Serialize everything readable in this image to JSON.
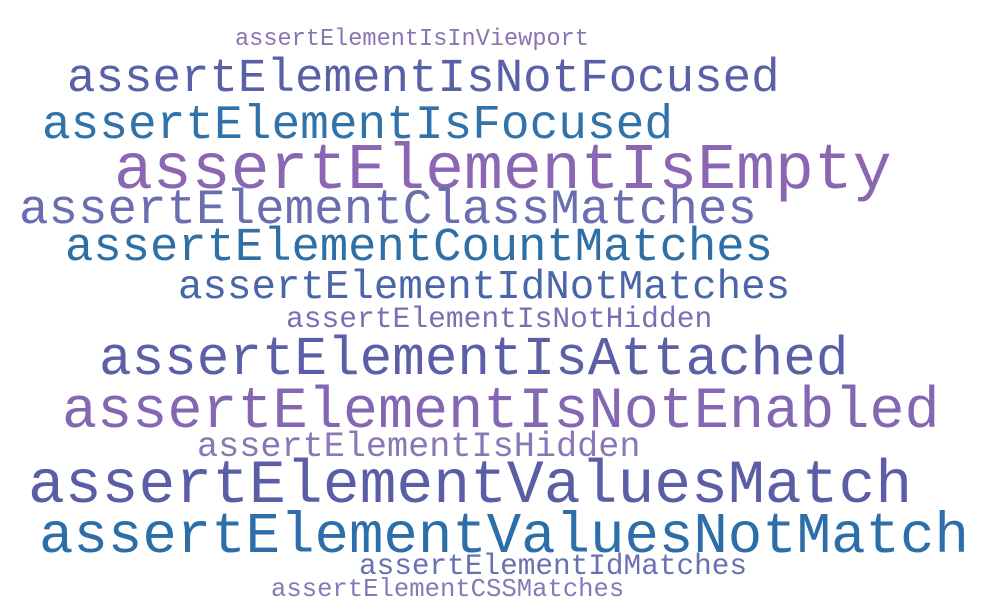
{
  "words": [
    {
      "text": "assertElementIsInViewport",
      "color": "#8a75b3"
    },
    {
      "text": "assertElementIsNotFocused",
      "color": "#5860a8"
    },
    {
      "text": "assertElementIsFocused",
      "color": "#2f73aa"
    },
    {
      "text": "assertElementIsEmpty",
      "color": "#8a66b3"
    },
    {
      "text": "assertElementClassMatches",
      "color": "#6a6db0"
    },
    {
      "text": "assertElementCountMatches",
      "color": "#2e6fa6"
    },
    {
      "text": "assertElementIdNotMatches",
      "color": "#4a66a8"
    },
    {
      "text": "assertElementIsNotHidden",
      "color": "#7b6fb4"
    },
    {
      "text": "assertElementIsAttached",
      "color": "#5a5fa8"
    },
    {
      "text": "assertElementIsNotEnabled",
      "color": "#8466b3"
    },
    {
      "text": "assertElementIsHidden",
      "color": "#8a77b6"
    },
    {
      "text": "assertElementValuesMatch",
      "color": "#5a5ea7"
    },
    {
      "text": "assertElementValuesNotMatch",
      "color": "#2b6ea8"
    },
    {
      "text": "assertElementIdMatches",
      "color": "#6a70b0"
    },
    {
      "text": "assertElementCSSMatches",
      "color": "#8a78b6"
    }
  ]
}
